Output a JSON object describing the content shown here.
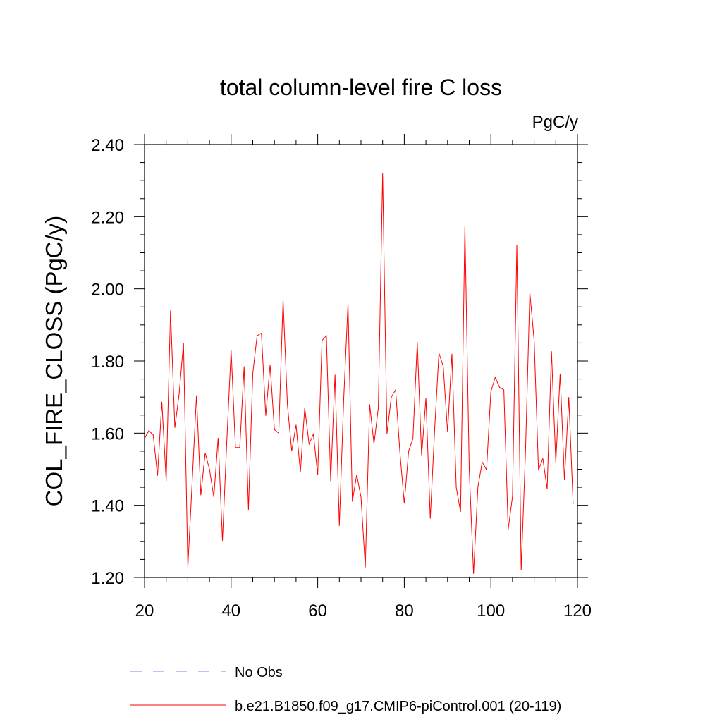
{
  "chart_data": {
    "type": "line",
    "title": "total column-level fire C loss",
    "units": "PgC/y",
    "ylabel": "COL_FIRE_CLOSS  (PgC/y)",
    "xlabel": "",
    "xlim": [
      20,
      120
    ],
    "ylim": [
      1.2,
      2.4
    ],
    "xticks": [
      20,
      40,
      60,
      80,
      100,
      120
    ],
    "xtick_labels": [
      "20",
      "40",
      "60",
      "80",
      "100",
      "120"
    ],
    "yticks": [
      1.2,
      1.4,
      1.6,
      1.8,
      2.0,
      2.2,
      2.4
    ],
    "ytick_labels": [
      "1.20",
      "1.40",
      "1.60",
      "1.80",
      "2.00",
      "2.20",
      "2.40"
    ],
    "series": [
      {
        "name": "b.e21.B1850.f09_g17.CMIP6-piControl.001 (20-119)",
        "color": "#ff0000",
        "x_start": 20,
        "values": [
          1.585,
          1.607,
          1.595,
          1.482,
          1.687,
          1.467,
          1.94,
          1.615,
          1.71,
          1.85,
          1.228,
          1.465,
          1.705,
          1.428,
          1.545,
          1.5,
          1.423,
          1.587,
          1.302,
          1.578,
          1.83,
          1.56,
          1.56,
          1.785,
          1.387,
          1.765,
          1.87,
          1.877,
          1.648,
          1.79,
          1.61,
          1.6,
          1.97,
          1.68,
          1.55,
          1.623,
          1.492,
          1.67,
          1.57,
          1.597,
          1.485,
          1.857,
          1.87,
          1.467,
          1.762,
          1.343,
          1.692,
          1.96,
          1.41,
          1.485,
          1.423,
          1.228,
          1.68,
          1.57,
          1.67,
          2.32,
          1.598,
          1.7,
          1.72,
          1.545,
          1.405,
          1.55,
          1.585,
          1.852,
          1.537,
          1.697,
          1.363,
          1.607,
          1.822,
          1.785,
          1.603,
          1.82,
          1.45,
          1.382,
          2.175,
          1.5,
          1.21,
          1.45,
          1.52,
          1.498,
          1.715,
          1.755,
          1.727,
          1.72,
          1.333,
          1.425,
          2.122,
          1.22,
          1.55,
          1.99,
          1.857,
          1.497,
          1.53,
          1.445,
          1.827,
          1.518,
          1.765,
          1.47,
          1.7,
          1.403
        ]
      },
      {
        "name": "No Obs",
        "color": "#8080ff",
        "dashed": true,
        "values": []
      }
    ]
  }
}
